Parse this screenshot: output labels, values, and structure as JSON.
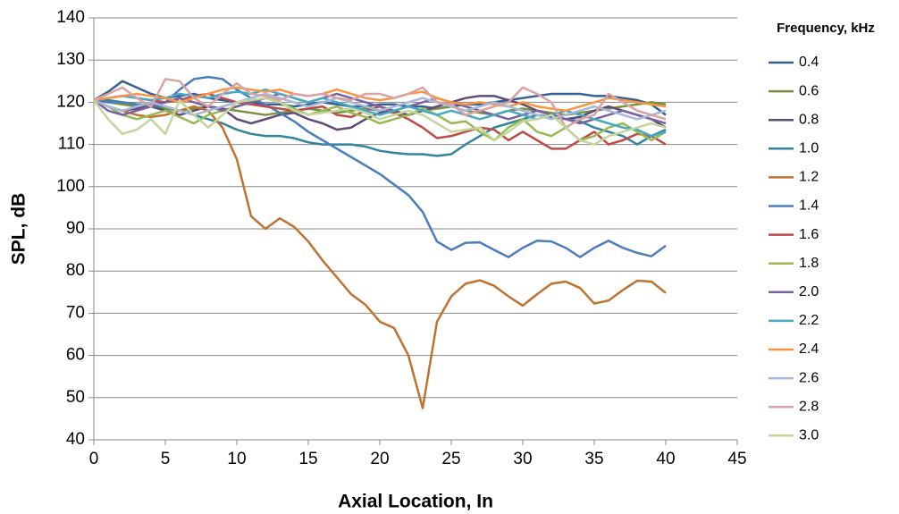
{
  "chart_data": {
    "type": "line",
    "x_label": "Axial Location, In",
    "y_label": "SPL, dB",
    "legend_title": "Frequency, kHz",
    "legend": "right",
    "grid": true,
    "xlim": [
      0,
      45
    ],
    "xticks": [
      0,
      5,
      10,
      15,
      20,
      25,
      30,
      35,
      40,
      45
    ],
    "ylim": [
      40,
      140
    ],
    "yticks": [
      40,
      50,
      60,
      70,
      80,
      90,
      100,
      110,
      120,
      130,
      140
    ],
    "x": [
      0,
      1,
      2,
      3,
      4,
      5,
      6,
      7,
      8,
      9,
      10,
      11,
      12,
      13,
      14,
      15,
      16,
      17,
      18,
      19,
      20,
      21,
      22,
      23,
      24,
      25,
      26,
      27,
      28,
      29,
      30,
      31,
      32,
      33,
      34,
      35,
      36,
      37,
      38,
      39,
      40
    ],
    "series": [
      {
        "name": "0.4",
        "color": "#376092",
        "values": [
          120.5,
          122.5,
          125,
          123.5,
          122,
          121,
          121.5,
          122,
          121,
          120.5,
          120,
          120,
          119.5,
          119.5,
          119,
          119.5,
          120,
          119.5,
          119,
          119,
          119.5,
          119.5,
          119,
          119,
          118.5,
          119,
          119.5,
          119.5,
          120,
          120.5,
          121,
          121.5,
          122,
          122,
          122,
          121.5,
          121.5,
          121,
          120.5,
          119.5,
          117
        ]
      },
      {
        "name": "0.6",
        "color": "#77933c",
        "values": [
          120.5,
          120,
          119.5,
          119,
          119,
          118.5,
          118,
          118.5,
          119,
          118.5,
          118,
          117.5,
          117,
          117.5,
          118,
          118.5,
          118,
          117.5,
          118,
          118.5,
          118,
          117.5,
          117,
          118,
          118.5,
          119,
          118,
          117.5,
          117,
          118,
          118.5,
          118,
          117.5,
          117,
          117.5,
          118,
          118.5,
          119,
          119.5,
          120,
          119.5
        ]
      },
      {
        "name": "0.8",
        "color": "#604a7b",
        "values": [
          120.5,
          119,
          118,
          118.5,
          119,
          118,
          117,
          118,
          119,
          118.5,
          116,
          115,
          116,
          117,
          117.5,
          116,
          115,
          113.5,
          114,
          116,
          117.5,
          118,
          117,
          118,
          119,
          120,
          121,
          121.5,
          121.5,
          120.5,
          119.5,
          118,
          117,
          116,
          116.5,
          118,
          119,
          118,
          117,
          116,
          114
        ]
      },
      {
        "name": "1.0",
        "color": "#31859c",
        "values": [
          120.5,
          120.5,
          120,
          119.5,
          119,
          119,
          118,
          117,
          116,
          115,
          113.5,
          112.5,
          112,
          112,
          111.5,
          110.5,
          110,
          110,
          110,
          109.5,
          108.5,
          108,
          107.7,
          107.7,
          107.3,
          107.7,
          110,
          112,
          114,
          115,
          116,
          117,
          116.5,
          116,
          115.5,
          114,
          113,
          112,
          110,
          112,
          113.5
        ]
      },
      {
        "name": "1.2",
        "color": "#c0722f",
        "values": [
          120.5,
          119,
          118,
          117,
          116.5,
          117,
          118,
          119,
          118,
          114,
          106.5,
          93,
          90,
          92.5,
          90.5,
          87,
          82.5,
          78.5,
          74.5,
          72,
          68,
          66.5,
          60,
          47.5,
          68,
          74,
          77,
          77.8,
          76.5,
          74,
          71.8,
          74.5,
          77,
          77.5,
          76,
          72.3,
          73,
          75.5,
          77.7,
          77.5,
          74.8
        ]
      },
      {
        "name": "1.4",
        "color": "#4a7ebb",
        "values": [
          120.5,
          120,
          120,
          119.5,
          119.5,
          120,
          123,
          125.5,
          126,
          125.5,
          123,
          121,
          119.5,
          117.5,
          115.5,
          113,
          111,
          109,
          107,
          105,
          103,
          100.5,
          98,
          94,
          87,
          85,
          86.7,
          86.8,
          85,
          83.3,
          85.5,
          87.2,
          87,
          85.5,
          83.3,
          85.5,
          87.2,
          85.5,
          84.3,
          83.5,
          86
        ]
      },
      {
        "name": "1.6",
        "color": "#be4b48",
        "values": [
          120.5,
          121,
          121.5,
          121,
          120.5,
          120,
          120.5,
          121.5,
          122,
          121,
          120,
          119.5,
          119,
          118.5,
          118,
          118.5,
          119,
          117,
          116.5,
          118,
          119,
          117.5,
          116,
          114,
          111.5,
          112,
          113,
          114,
          113.5,
          111,
          113,
          111,
          109,
          109,
          111,
          113,
          110,
          111,
          112.5,
          112,
          110
        ]
      },
      {
        "name": "1.8",
        "color": "#98b954",
        "values": [
          120.5,
          119,
          117,
          116,
          117,
          118,
          116.5,
          115,
          117,
          118,
          119,
          120,
          121,
          120,
          118.5,
          117,
          118,
          119,
          117.5,
          116.5,
          115,
          116,
          117,
          118.5,
          117,
          115,
          115.5,
          113,
          111,
          114,
          116,
          113,
          112,
          114,
          111,
          112,
          114,
          115,
          113,
          111,
          113
        ]
      },
      {
        "name": "2.0",
        "color": "#7d60a0",
        "values": [
          120.5,
          118,
          117,
          118,
          119,
          120,
          121,
          120,
          119,
          118,
          119,
          120,
          121,
          122,
          121,
          120,
          121,
          122,
          121,
          120,
          119,
          118,
          119,
          120,
          121,
          120,
          119,
          118,
          117,
          116,
          117,
          118,
          117,
          116,
          115,
          116,
          117,
          118,
          117,
          116,
          115
        ]
      },
      {
        "name": "2.2",
        "color": "#46aac5",
        "values": [
          120.5,
          121,
          121.5,
          121,
          120.5,
          121,
          122,
          121.5,
          121,
          122,
          122.5,
          122,
          123,
          122,
          121,
          120,
          121,
          120,
          119,
          118,
          117,
          118,
          119,
          118,
          117,
          118,
          117,
          116,
          117,
          118,
          117,
          116,
          117,
          118,
          117,
          116,
          115,
          114,
          113.5,
          112,
          113
        ]
      },
      {
        "name": "2.4",
        "color": "#f79646",
        "values": [
          120.5,
          121,
          121.5,
          122,
          121.5,
          121,
          120,
          121,
          122,
          123,
          123.5,
          123,
          122.5,
          123,
          122,
          121.5,
          122,
          123,
          122,
          121,
          120.5,
          121,
          122,
          122.5,
          121,
          120,
          119.5,
          120,
          119.5,
          119,
          120,
          119,
          118.5,
          118,
          119,
          120,
          121,
          120.5,
          120,
          119.5,
          119
        ]
      },
      {
        "name": "2.6",
        "color": "#a5b9dc",
        "values": [
          120.5,
          119,
          118,
          119,
          120,
          119,
          118,
          117,
          118,
          119,
          120,
          121,
          122,
          121,
          120,
          119,
          120,
          121,
          120,
          119,
          118,
          119,
          120,
          121,
          120,
          119,
          118,
          119,
          120,
          119,
          118,
          117,
          116,
          117,
          118,
          119,
          118,
          117,
          116,
          117,
          118
        ]
      },
      {
        "name": "2.8",
        "color": "#d9a3a3",
        "values": [
          120.5,
          122,
          123.5,
          121,
          119,
          125.5,
          125,
          121,
          119,
          122,
          124.5,
          122,
          121.5,
          120.5,
          122,
          121.5,
          122,
          121,
          120.5,
          122,
          122,
          121,
          122,
          123.5,
          120,
          119.5,
          117,
          118,
          119,
          120,
          123.5,
          122,
          120,
          114,
          116,
          117,
          122,
          120,
          118,
          117,
          116
        ]
      },
      {
        "name": "3.0",
        "color": "#c3d69b",
        "values": [
          120.5,
          116,
          112.5,
          113.5,
          116,
          112.5,
          120.5,
          117,
          114,
          117,
          120,
          120.5,
          121,
          120,
          118,
          117,
          117.5,
          118,
          118.5,
          117.5,
          116,
          117,
          118,
          117,
          115,
          113,
          113.5,
          114,
          111,
          113,
          115.5,
          116,
          117,
          114,
          111,
          110,
          112,
          113,
          114,
          115,
          114
        ]
      }
    ]
  }
}
